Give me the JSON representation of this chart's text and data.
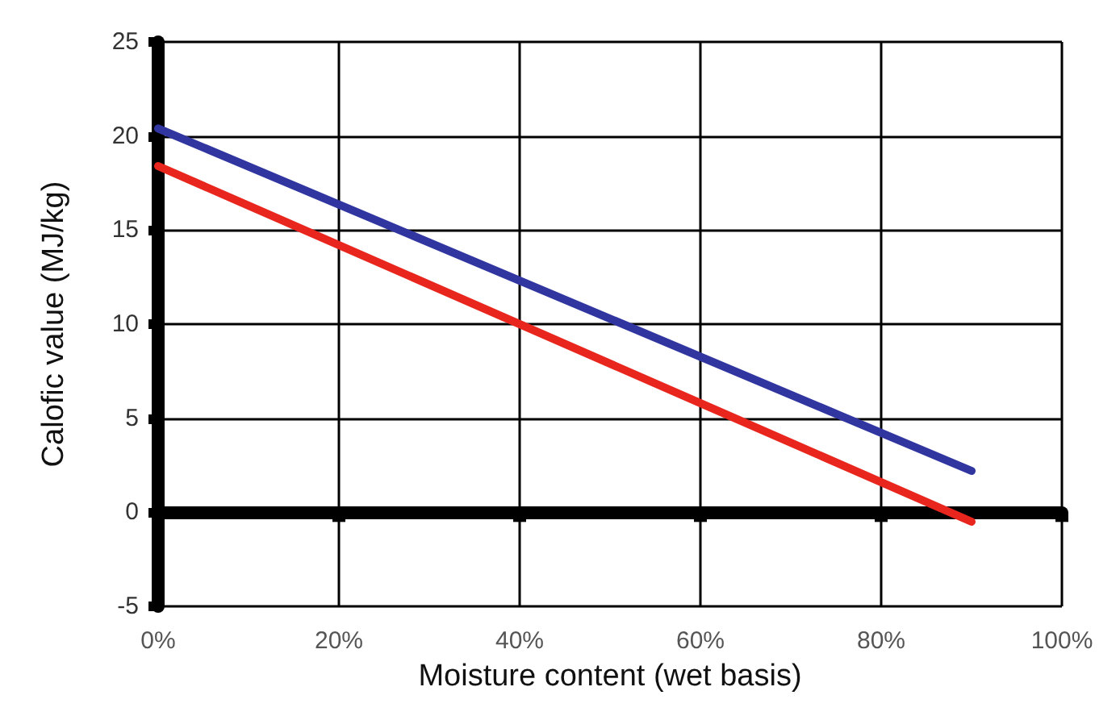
{
  "chart_data": {
    "type": "line",
    "xlabel": "Moisture content (wet basis)",
    "ylabel": "Calofic value (MJ/kg)",
    "x": [
      0,
      90
    ],
    "series": [
      {
        "color": "#3035a0",
        "values": [
          20.4,
          2.2
        ]
      },
      {
        "color": "#e8261e",
        "values": [
          18.4,
          -0.5
        ]
      }
    ],
    "xlim": [
      0,
      100
    ],
    "xticks": [
      {
        "value": 0,
        "label": "0%"
      },
      {
        "value": 20,
        "label": "20%"
      },
      {
        "value": 40,
        "label": "40%"
      },
      {
        "value": 60,
        "label": "60%"
      },
      {
        "value": 80,
        "label": "80%"
      },
      {
        "value": 100,
        "label": "100%"
      }
    ],
    "ylim": [
      -5,
      25
    ],
    "yticks": [
      -5,
      0,
      5,
      10,
      15,
      20,
      25
    ],
    "grid": true,
    "marker": "none",
    "line_style": "solid"
  }
}
